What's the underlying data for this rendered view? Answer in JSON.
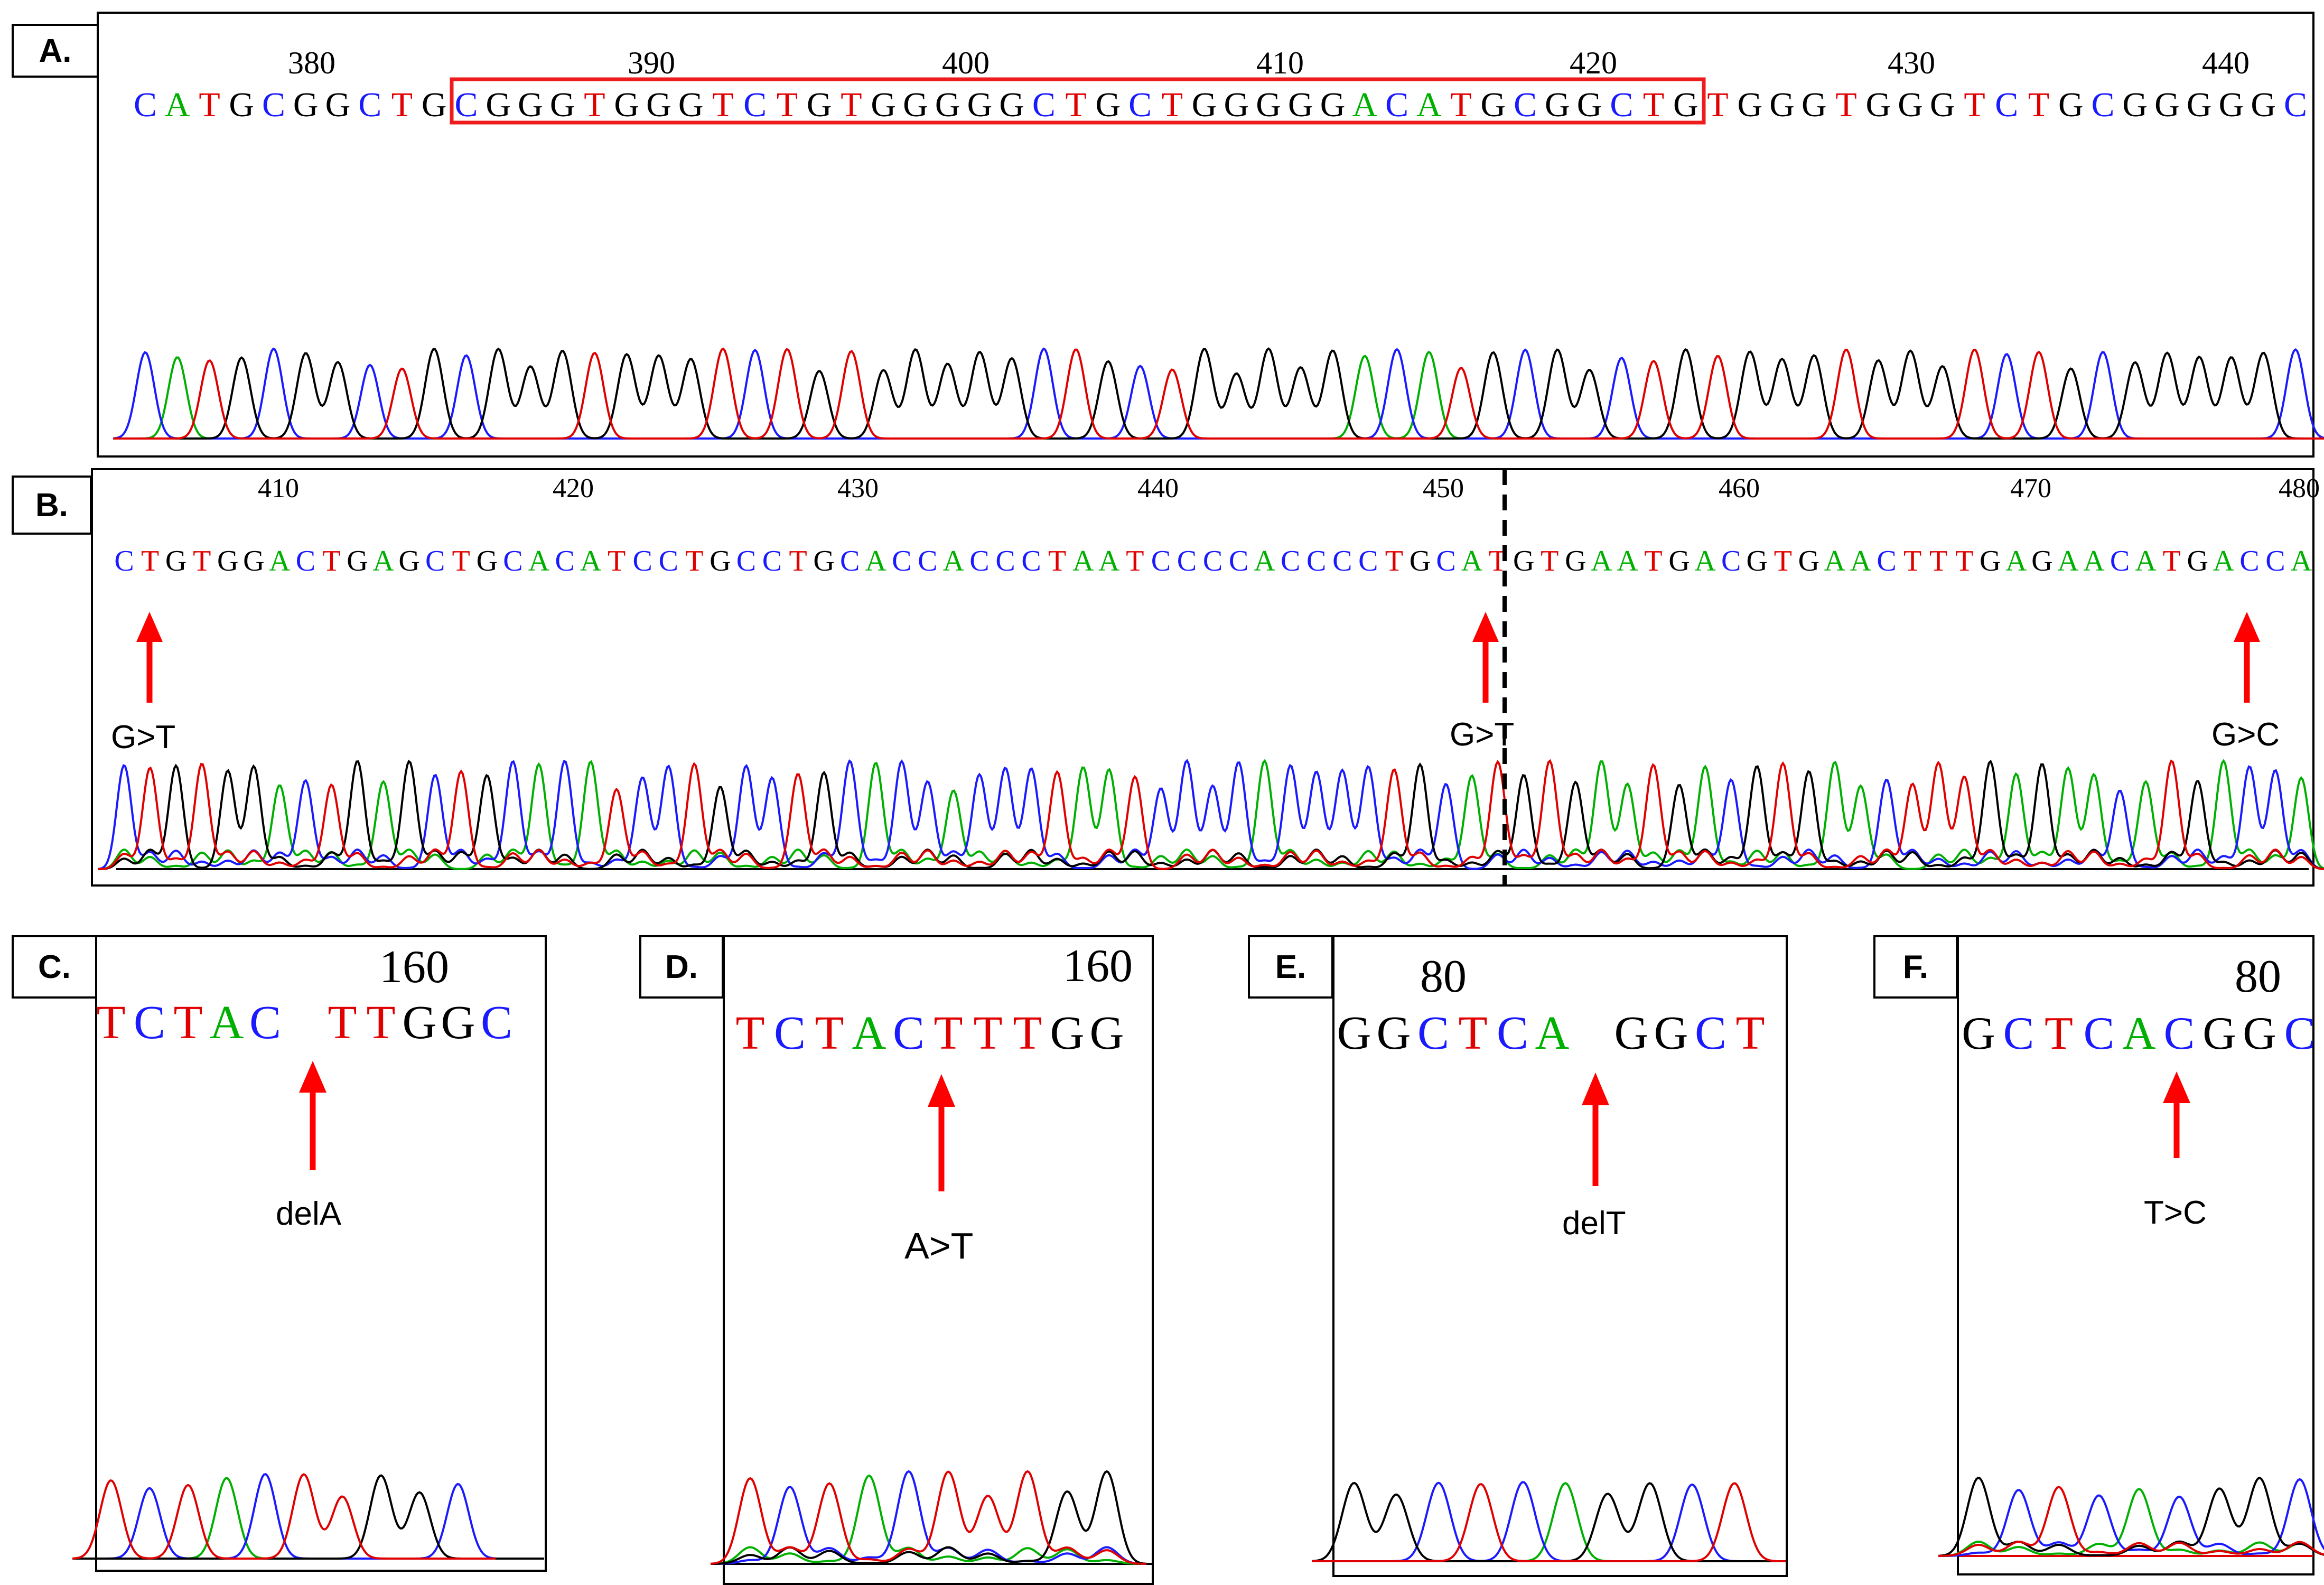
{
  "colors": {
    "A": "#00b000",
    "C": "#1a1aff",
    "G": "#000000",
    "T": "#e00000",
    "arrow": "#ff0000",
    "frame": "#ee1c1c"
  },
  "panels": {
    "A": {
      "label": "A.",
      "sequence": "CATGCGGCTGCGGGTGGGTCTGTGGGGGCTGCTGGGGGACATGCGGCTGTGGGTGGGTCTGCGGGGGC",
      "positions": [
        "380",
        "390",
        "400",
        "410",
        "420",
        "430",
        "440"
      ]
    },
    "B": {
      "label": "B.",
      "sequence": "CTGTGGACTGAGCTGCACATCCTGCCTGCACCACCCTAATCCCCACCCCTGCATGTGAATGACGTGAACTTTGAGAACATGACCA",
      "positions": [
        "410",
        "420",
        "430",
        "440",
        "450",
        "460",
        "470",
        "480"
      ],
      "annotations": [
        "G>T",
        "G>T",
        "G>C"
      ]
    },
    "C": {
      "label": "C.",
      "sequence": "TCTAC TTGGC",
      "position": "160",
      "annotation": "delA"
    },
    "D": {
      "label": "D.",
      "sequence": "TCTACTTTGG",
      "position": "160",
      "annotation": "A>T"
    },
    "E": {
      "label": "E.",
      "sequence": "GGCTCA GGCT",
      "position": "80",
      "annotation": "delT"
    },
    "F": {
      "label": "F.",
      "sequence": "GCTCACGGC",
      "position": "80",
      "annotation": "T>C"
    }
  }
}
